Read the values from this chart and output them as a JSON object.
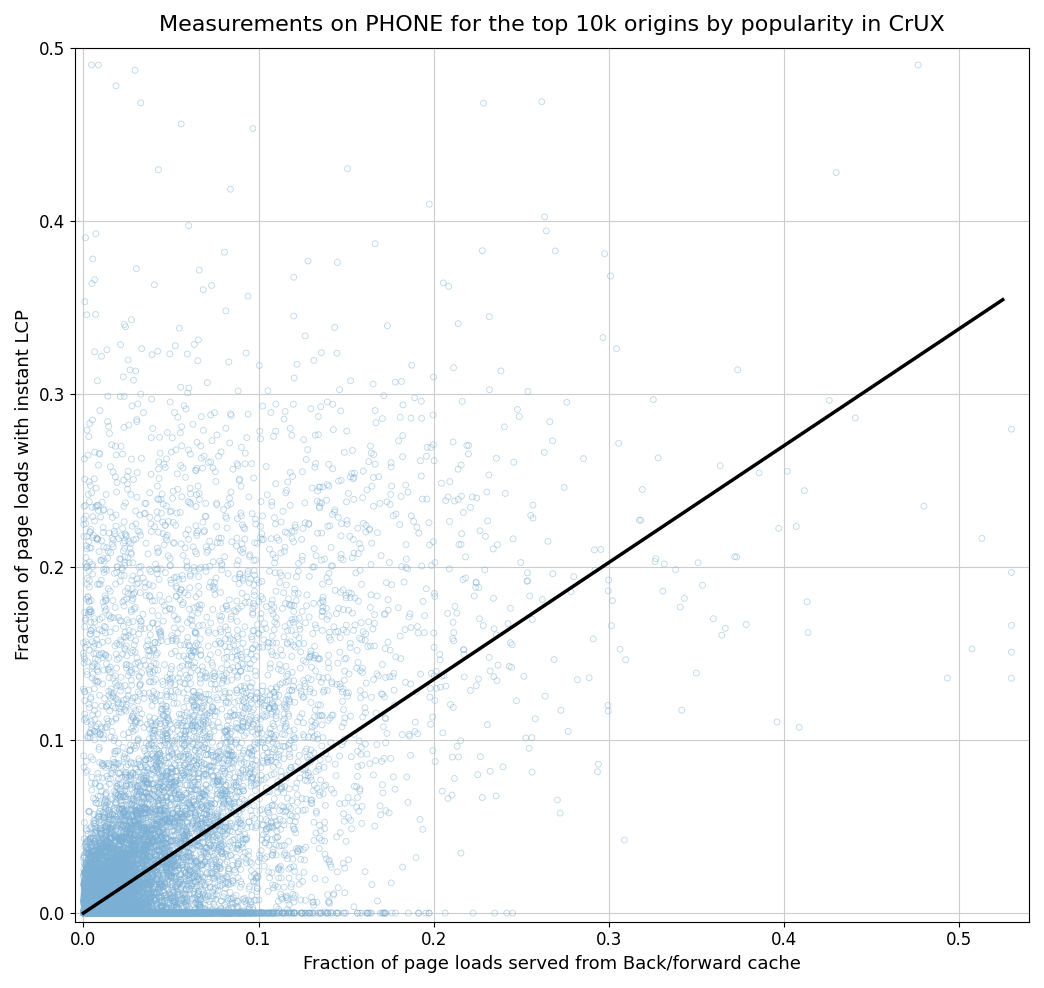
{
  "title": "Measurements on PHONE for the top 10k origins by popularity in CrUX",
  "xlabel": "Fraction of page loads served from Back/forward cache",
  "ylabel": "Fraction of page loads with instant LCP",
  "xlim": [
    -0.005,
    0.54
  ],
  "ylim": [
    -0.005,
    0.5
  ],
  "xticks": [
    0.0,
    0.1,
    0.2,
    0.3,
    0.4,
    0.5
  ],
  "yticks": [
    0.0,
    0.1,
    0.2,
    0.3,
    0.4,
    0.5
  ],
  "scatter_facecolor": "none",
  "scatter_edgecolor": "#7bafd4",
  "scatter_alpha": 0.5,
  "scatter_size": 18,
  "scatter_linewidth": 0.6,
  "line_color": "black",
  "line_width": 2.5,
  "line_slope": 0.675,
  "line_x_start": 0.0,
  "line_x_end": 0.525,
  "n_points": 10000,
  "seed": 42,
  "title_fontsize": 16,
  "label_fontsize": 13,
  "tick_fontsize": 12,
  "background_color": "#ffffff",
  "grid_color": "#cccccc",
  "grid_linewidth": 0.8
}
